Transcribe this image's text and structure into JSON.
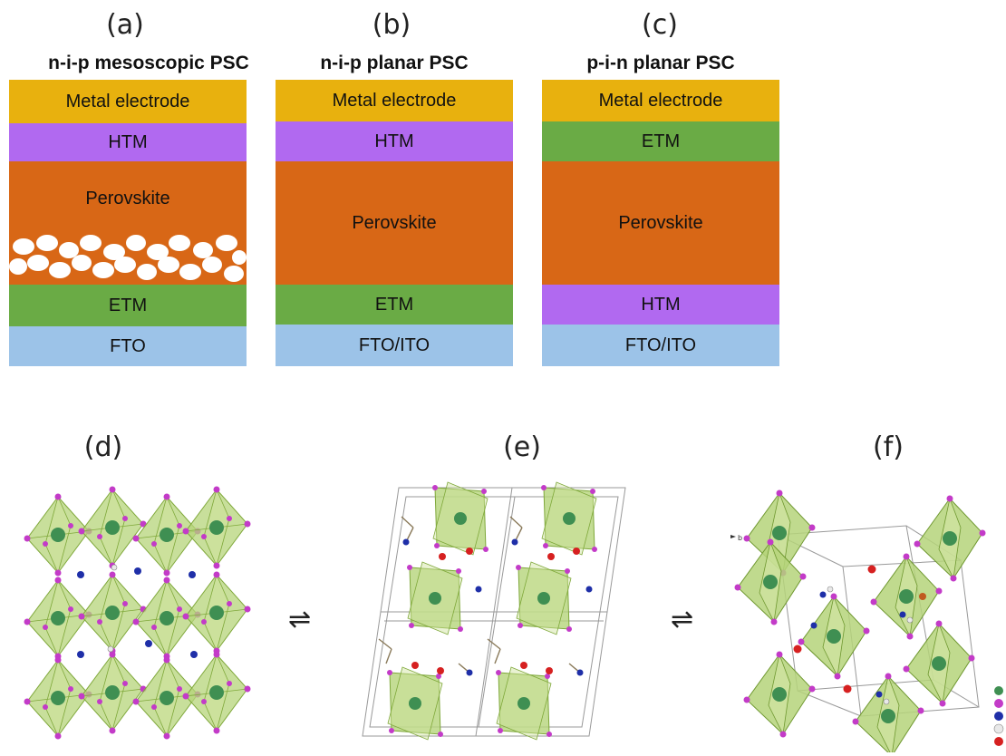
{
  "panels": {
    "a": {
      "letter": "(a)",
      "title": "n-i-p mesoscopic PSC",
      "layers": [
        "Metal electrode",
        "HTM",
        "Perovskite",
        "ETM",
        "FTO"
      ]
    },
    "b": {
      "letter": "(b)",
      "title": "n-i-p planar PSC",
      "layers": [
        "Metal electrode",
        "HTM",
        "Perovskite",
        "ETM",
        "FTO/ITO"
      ]
    },
    "c": {
      "letter": "(c)",
      "title": "p-i-n planar PSC",
      "layers": [
        "Metal electrode",
        "ETM",
        "Perovskite",
        "HTM",
        "FTO/ITO"
      ]
    },
    "d": {
      "letter": "(d)"
    },
    "e": {
      "letter": "(e)"
    },
    "f": {
      "letter": "(f)",
      "axis_label": "b"
    }
  },
  "equilibrium_symbol": "⇌",
  "colors": {
    "metal_electrode": "#e8b10e",
    "htm": "#b169f0",
    "etm": "#6aab45",
    "perovskite": "#d86716",
    "transparent_electrode": "#9cc3e8",
    "octahedron": "#b5d47a",
    "octahedron_edge": "#7fa83a",
    "metal_atom": "#3f8f52",
    "halide_atom": "#c33bc8",
    "nitrogen_atom": "#1f2fa8",
    "oxygen_atom": "#d62020",
    "hydrogen_atom": "#e9e9e9"
  }
}
